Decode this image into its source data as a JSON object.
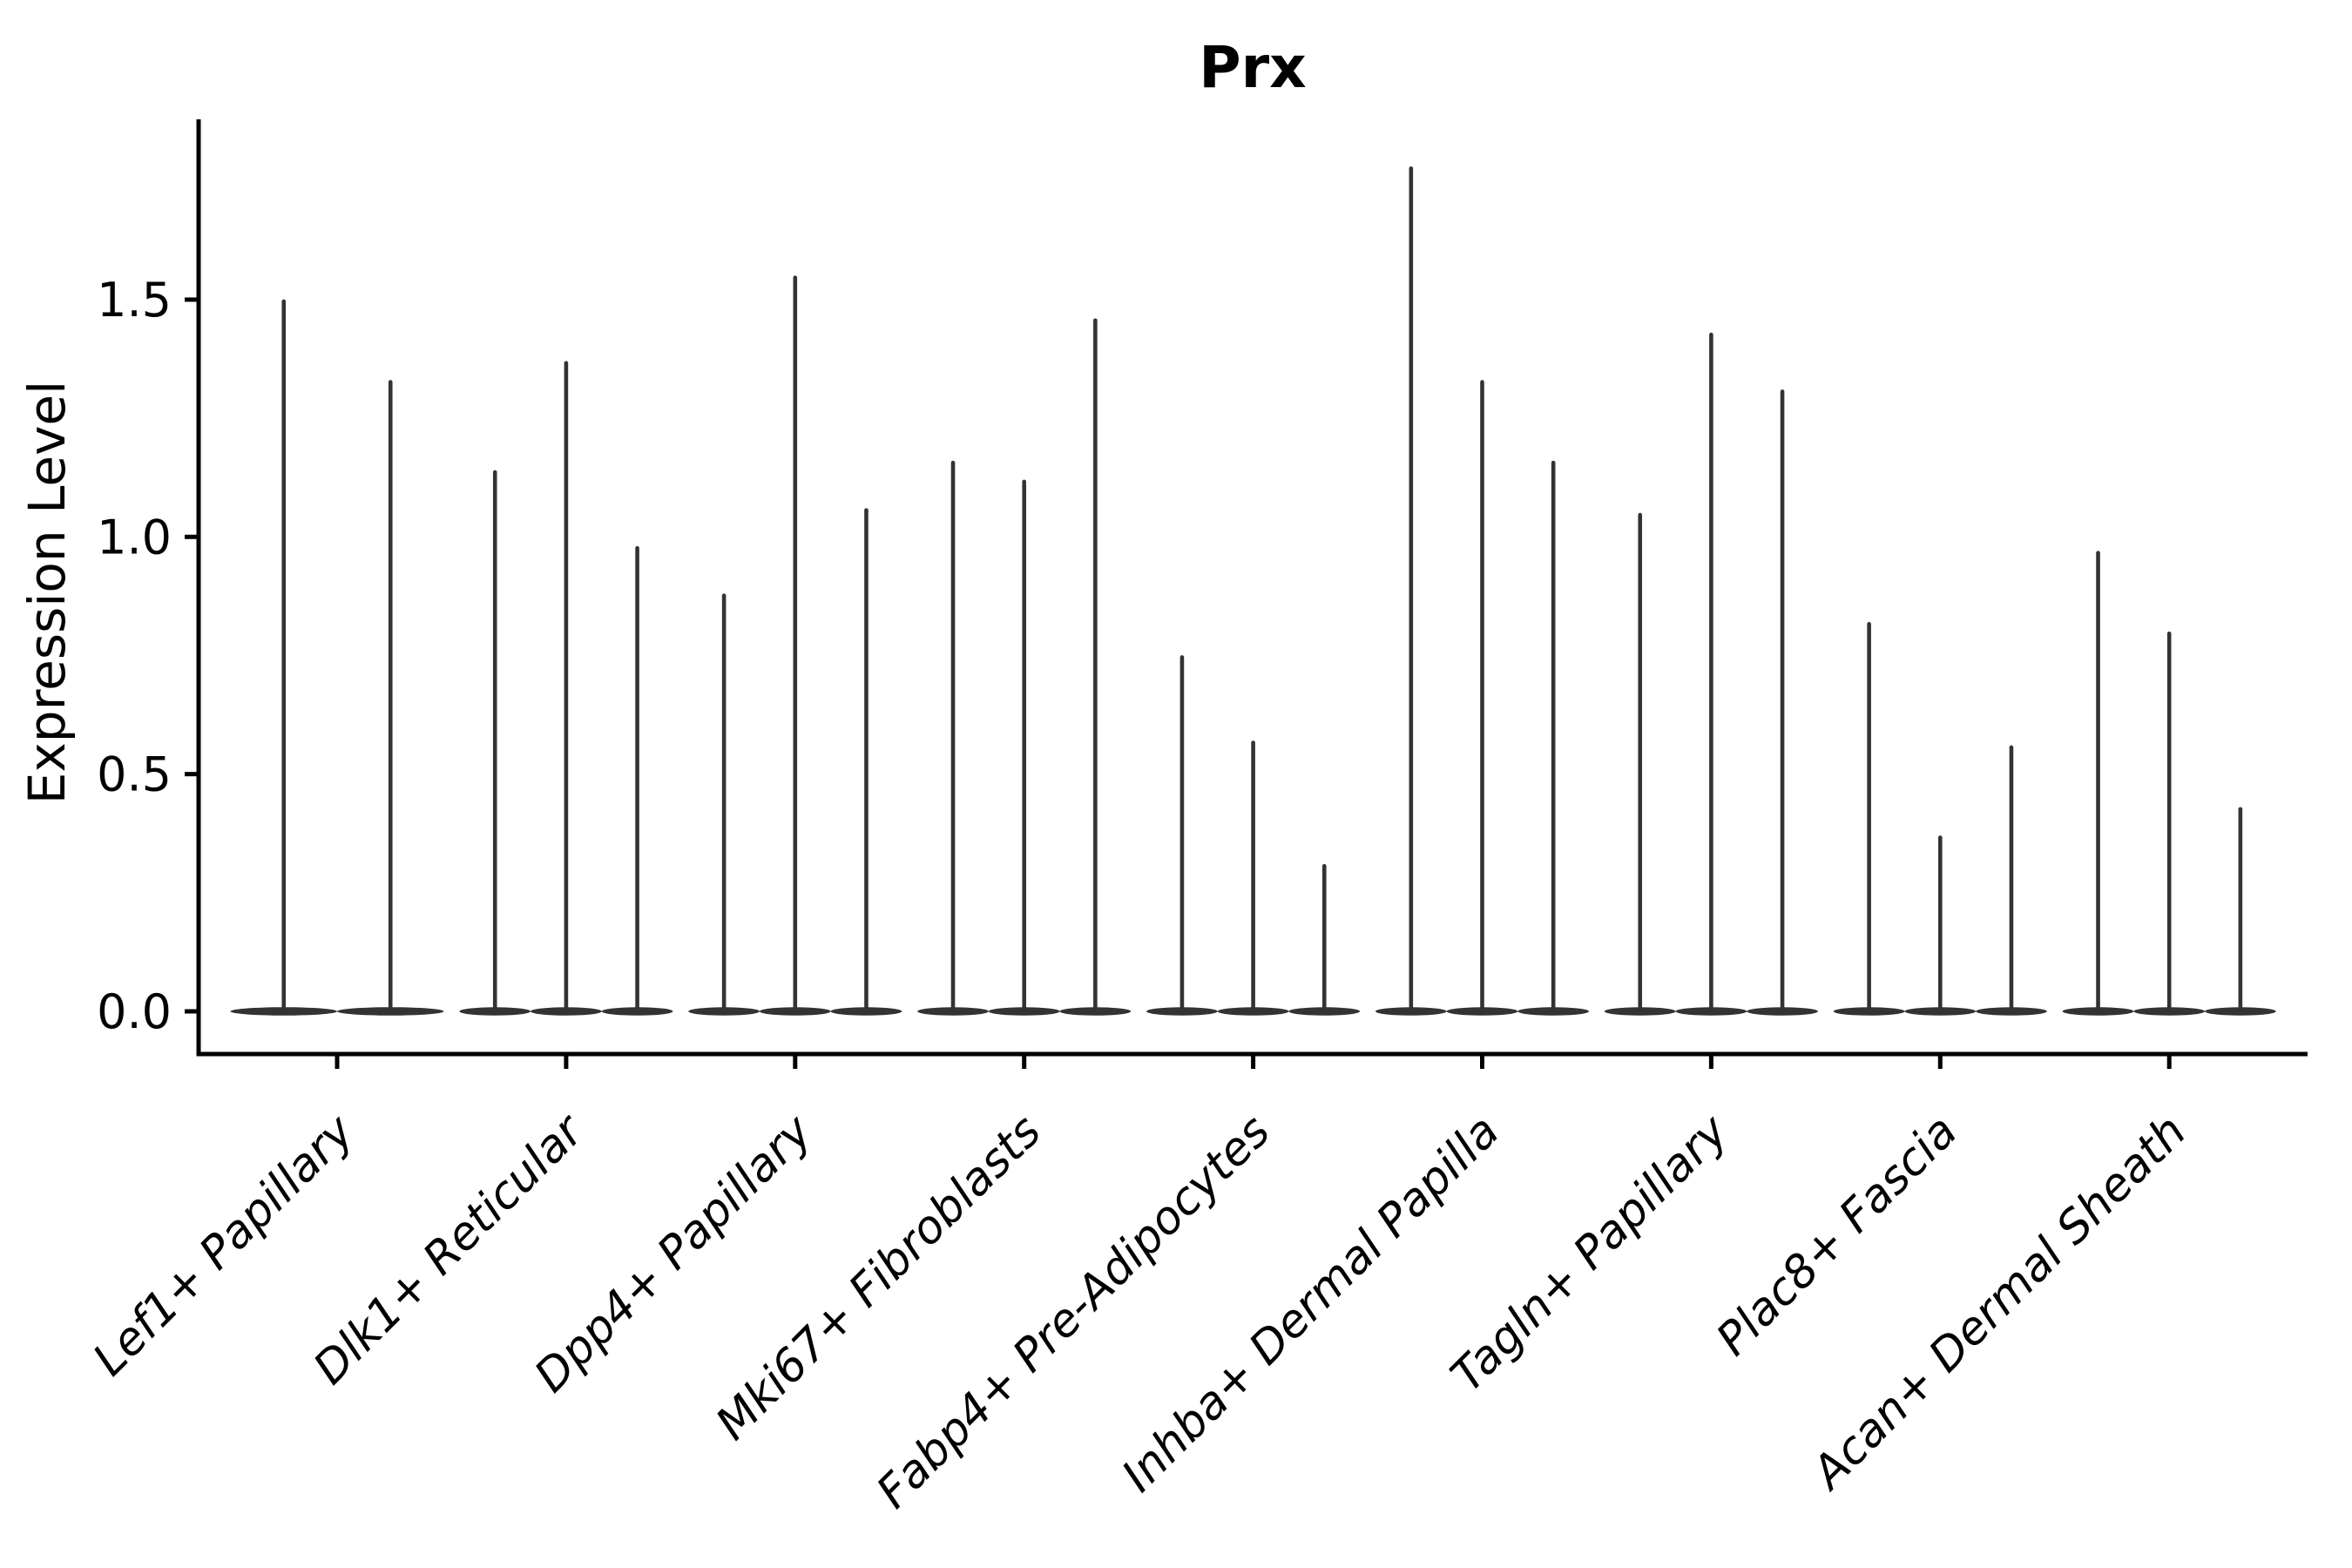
{
  "figure": {
    "title": "Prx",
    "ylabel": "Expression Level",
    "background_color": "#ffffff",
    "axis_color": "#000000",
    "violin_color": "#333333"
  },
  "chart_data": {
    "type": "violin",
    "title": "Prx",
    "xlabel": "",
    "ylabel": "Expression Level",
    "grid": false,
    "legend": "none",
    "ylim": [
      -0.09,
      1.88
    ],
    "yticks": [
      0.0,
      0.5,
      1.0,
      1.5
    ],
    "ytick_labels": [
      "0.0",
      "0.5",
      "1.0",
      "1.5"
    ],
    "categories": [
      "Lef1+ Papillary",
      "Dlk1+ Reticular",
      "Dpp4+ Papillary",
      "Mki67+ Fibroblasts",
      "Fabp4+ Pre-Adipocytes",
      "Inhba+ Dermal Papilla",
      "Tagln+ Papillary",
      "Plac8+ Fascia",
      "Acan+ Dermal Sheath"
    ],
    "groups": [
      {
        "label": "Lef1+ Papillary",
        "violin_peaks": [
          1.5,
          1.33
        ]
      },
      {
        "label": "Dlk1+ Reticular",
        "violin_peaks": [
          1.14,
          1.37,
          0.98
        ]
      },
      {
        "label": "Dpp4+ Papillary",
        "violin_peaks": [
          0.88,
          1.55,
          1.06
        ]
      },
      {
        "label": "Mki67+ Fibroblasts",
        "violin_peaks": [
          1.16,
          1.12,
          1.46
        ]
      },
      {
        "label": "Fabp4+ Pre-Adipocytes",
        "violin_peaks": [
          0.75,
          0.57,
          0.31
        ]
      },
      {
        "label": "Inhba+ Dermal Papilla",
        "violin_peaks": [
          1.78,
          1.33,
          1.16
        ]
      },
      {
        "label": "Tagln+ Papillary",
        "violin_peaks": [
          1.05,
          1.43,
          1.31
        ]
      },
      {
        "label": "Plac8+ Fascia",
        "violin_peaks": [
          0.82,
          0.37,
          0.56
        ]
      },
      {
        "label": "Acan+ Dermal Sheath",
        "violin_peaks": [
          0.97,
          0.8,
          0.43
        ]
      }
    ],
    "description": "Violin plot of Prx expression level per fibroblast cluster; each cluster shows 2-3 extremely narrow needle-like violins whose mass is concentrated at 0."
  }
}
